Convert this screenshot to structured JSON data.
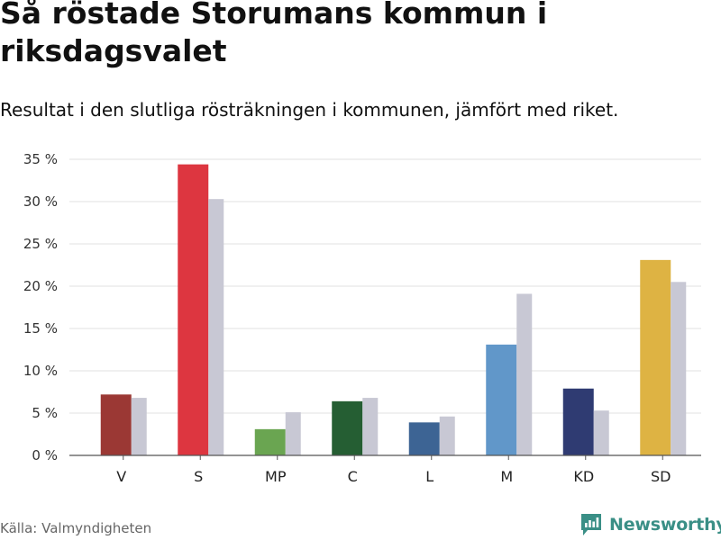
{
  "header": {
    "title": "Så röstade Storumans kommun i riksdagsvalet",
    "subtitle": "Resultat i den slutliga rösträkningen i kommunen, jämfört med riket."
  },
  "footer": {
    "source": "Källa: Valmyndigheten",
    "brand": "Newsworthy",
    "brand_icon": "newsworthy-logo-icon",
    "brand_color": "#3a8f86"
  },
  "chart_data": {
    "type": "bar",
    "categories": [
      "V",
      "S",
      "MP",
      "C",
      "L",
      "M",
      "KD",
      "SD"
    ],
    "series": [
      {
        "values": [
          7.2,
          34.4,
          3.1,
          6.4,
          3.9,
          13.1,
          7.9,
          23.1
        ],
        "colors": [
          "#9b3834",
          "#dd3640",
          "#6aa551",
          "#255e33",
          "#3d6494",
          "#6197c9",
          "#2f3b72",
          "#deb343"
        ]
      },
      {
        "values": [
          6.8,
          30.3,
          5.1,
          6.8,
          4.6,
          19.1,
          5.3,
          20.5
        ],
        "color": "#c8c8d4"
      }
    ],
    "ylim": [
      0,
      35
    ],
    "yticks": [
      0,
      5,
      10,
      15,
      20,
      25,
      30,
      35
    ],
    "ytick_labels": [
      "0 %",
      "5 %",
      "10 %",
      "15 %",
      "20 %",
      "25 %",
      "30 %",
      "35 %"
    ],
    "grid": true,
    "gridline_color": "#e0e0e0",
    "axis_color": "#555555"
  }
}
